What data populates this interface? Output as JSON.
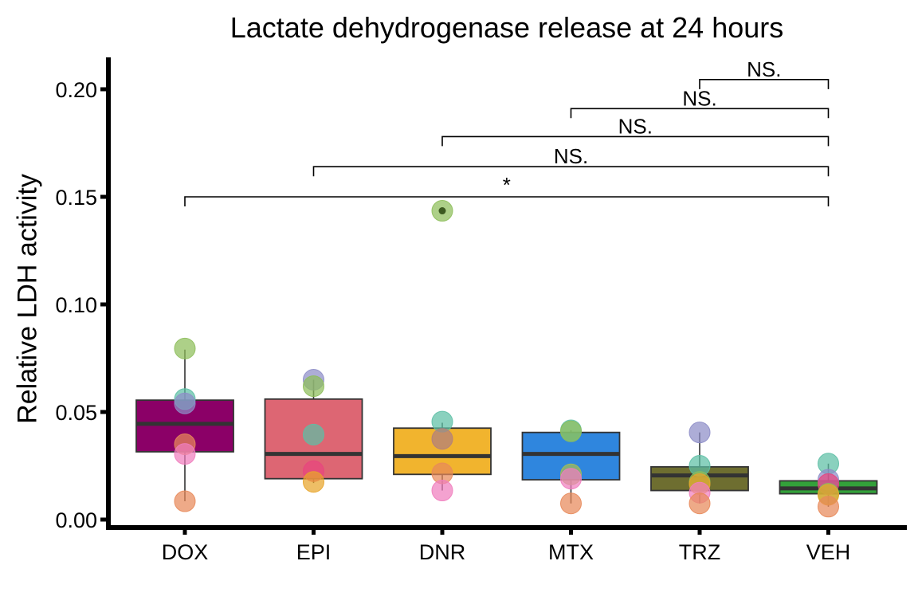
{
  "chart_data": {
    "type": "box",
    "title": "Lactate dehydrogenase release at 24 hours",
    "xlabel": "",
    "ylabel": "Relative LDH activity",
    "ylim": [
      0,
      0.2
    ],
    "yticks": [
      "0.00",
      "0.05",
      "0.10",
      "0.15",
      "0.20"
    ],
    "categories": [
      "DOX",
      "EPI",
      "DNR",
      "MTX",
      "TRZ",
      "VEH"
    ],
    "boxes": [
      {
        "name": "DOX",
        "color": "#8B0067",
        "q1": 0.0315,
        "median": 0.0445,
        "q3": 0.0555,
        "whisker_low": 0.0085,
        "whisker_high": 0.079,
        "points": [
          {
            "y": 0.0795,
            "color": "#8DBE5A"
          },
          {
            "y": 0.056,
            "color": "#5DBFA5"
          },
          {
            "y": 0.054,
            "color": "#8E8EC8"
          },
          {
            "y": 0.035,
            "color": "#E8895A"
          },
          {
            "y": 0.0305,
            "color": "#F07EBE"
          },
          {
            "y": 0.0085,
            "color": "#E8895A"
          }
        ]
      },
      {
        "name": "EPI",
        "color": "#DD6673",
        "q1": 0.019,
        "median": 0.0305,
        "q3": 0.056,
        "whisker_low": 0.017,
        "whisker_high": 0.065,
        "points": [
          {
            "y": 0.065,
            "color": "#8E8EC8"
          },
          {
            "y": 0.062,
            "color": "#8DBE5A"
          },
          {
            "y": 0.0395,
            "color": "#5DBFA5"
          },
          {
            "y": 0.0225,
            "color": "#E8457E"
          },
          {
            "y": 0.0175,
            "color": "#E8A52B"
          }
        ]
      },
      {
        "name": "DNR",
        "color": "#F1B42E",
        "q1": 0.021,
        "median": 0.0295,
        "q3": 0.0425,
        "whisker_low": 0.0135,
        "whisker_high": 0.045,
        "points": [
          {
            "y": 0.1435,
            "color": "#8DBE5A",
            "outlier": true
          },
          {
            "y": 0.0455,
            "color": "#5DBFA5"
          },
          {
            "y": 0.0375,
            "color": "#B07E7E"
          },
          {
            "y": 0.0215,
            "color": "#E8895A"
          },
          {
            "y": 0.0135,
            "color": "#F07EBE"
          }
        ]
      },
      {
        "name": "MTX",
        "color": "#2F86DE",
        "q1": 0.0185,
        "median": 0.0305,
        "q3": 0.0405,
        "whisker_low": 0.0075,
        "whisker_high": 0.0415,
        "points": [
          {
            "y": 0.0415,
            "color": "#5DBFA5"
          },
          {
            "y": 0.041,
            "color": "#8DBE5A"
          },
          {
            "y": 0.021,
            "color": "#A8BE52"
          },
          {
            "y": 0.019,
            "color": "#F07EBE"
          },
          {
            "y": 0.0075,
            "color": "#E8895A"
          }
        ]
      },
      {
        "name": "TRZ",
        "color": "#6E6E30",
        "q1": 0.0135,
        "median": 0.0205,
        "q3": 0.0245,
        "whisker_low": 0.0075,
        "whisker_high": 0.0405,
        "points": [
          {
            "y": 0.0405,
            "color": "#8E8EC8"
          },
          {
            "y": 0.025,
            "color": "#5DBFA5"
          },
          {
            "y": 0.0175,
            "color": "#8DBE5A"
          },
          {
            "y": 0.0165,
            "color": "#E8A52B"
          },
          {
            "y": 0.0125,
            "color": "#F07EBE"
          },
          {
            "y": 0.0075,
            "color": "#E8895A"
          }
        ]
      },
      {
        "name": "VEH",
        "color": "#33A13A",
        "q1": 0.012,
        "median": 0.0145,
        "q3": 0.018,
        "whisker_low": 0.006,
        "whisker_high": 0.026,
        "points": [
          {
            "y": 0.026,
            "color": "#5DBFA5"
          },
          {
            "y": 0.0185,
            "color": "#8E8EC8"
          },
          {
            "y": 0.0165,
            "color": "#E8457E"
          },
          {
            "y": 0.012,
            "color": "#8DBE5A"
          },
          {
            "y": 0.0115,
            "color": "#E8A52B"
          },
          {
            "y": 0.006,
            "color": "#E8895A"
          }
        ]
      }
    ],
    "comparisons": [
      {
        "from": "DOX",
        "to": "VEH",
        "y": 0.15,
        "label": "*"
      },
      {
        "from": "EPI",
        "to": "VEH",
        "y": 0.164,
        "label": "NS."
      },
      {
        "from": "DNR",
        "to": "VEH",
        "y": 0.178,
        "label": "NS."
      },
      {
        "from": "MTX",
        "to": "VEH",
        "y": 0.191,
        "label": "NS."
      },
      {
        "from": "TRZ",
        "to": "VEH",
        "y": 0.2045,
        "label": "NS."
      }
    ]
  }
}
